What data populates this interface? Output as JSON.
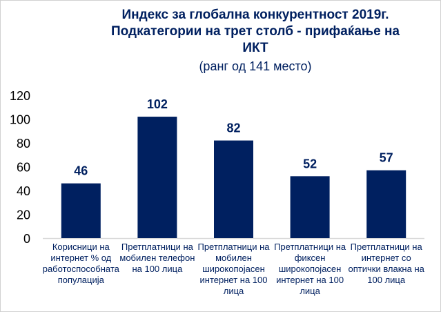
{
  "chart_data": {
    "type": "bar",
    "title": [
      "Индекс за глобална конкурентност 2019г.",
      "Подкатегории на трет столб - прифаќање на",
      "ИКТ"
    ],
    "subtitle": "(ранг од 141 место)",
    "categories": [
      "Корисници на интернет % од работоспособната популација",
      "Претплатници на мобилен телефон на 100 лица",
      "Претплатници на мобилен широкопојасен интернет на 100 лица",
      "Претплатници на фиксен широкопојасен интернет на 100 лица",
      "Претплатници на интернет со оптички влакна на 100 лица"
    ],
    "values": [
      46,
      102,
      82,
      52,
      57
    ],
    "ylim": [
      0,
      120
    ],
    "yticks": [
      0,
      20,
      40,
      60,
      80,
      100,
      120
    ],
    "xlabel": "",
    "ylabel": "",
    "grid": false,
    "bar_color": "#002060"
  }
}
